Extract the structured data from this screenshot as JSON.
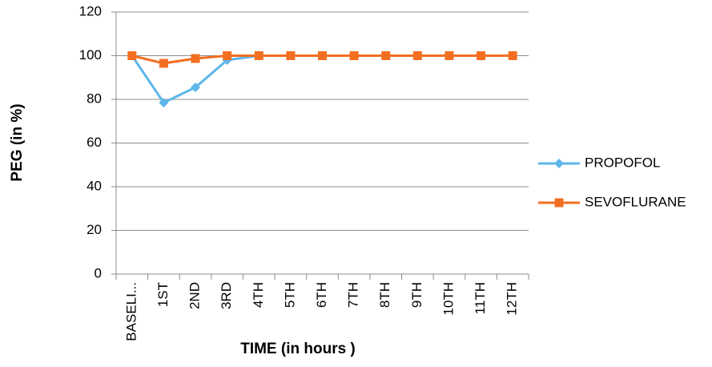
{
  "chart_data": {
    "type": "line",
    "x_label": "TIME (in hours )",
    "y_label": "PEG (in %)",
    "categories": [
      "BASELI...",
      "1ST",
      "2ND",
      "3RD",
      "4TH",
      "5TH",
      "6TH",
      "7TH",
      "8TH",
      "9TH",
      "10TH",
      "11TH",
      "12TH"
    ],
    "series": [
      {
        "name": "PROPOFOL",
        "color": "#5db6ea",
        "marker": "diamond",
        "values": [
          100,
          78.5,
          85.5,
          98,
          100,
          100,
          100,
          100,
          100,
          100,
          100,
          100,
          100
        ]
      },
      {
        "name": "SEVOFLURANE",
        "color": "#f26f21",
        "marker": "square",
        "values": [
          100,
          96.5,
          98.7,
          100,
          100,
          100,
          100,
          100,
          100,
          100,
          100,
          100,
          100
        ]
      }
    ],
    "ylim": [
      0,
      120
    ],
    "yticks": [
      0,
      20,
      40,
      60,
      80,
      100,
      120
    ],
    "grid": true,
    "legend": "right"
  }
}
